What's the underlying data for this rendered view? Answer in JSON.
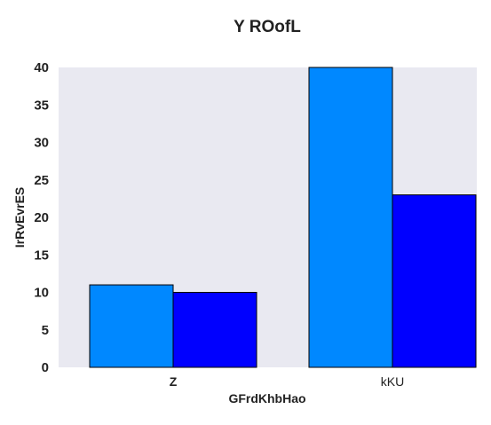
{
  "chart_data": {
    "type": "bar",
    "title": "Y ROofL",
    "xlabel": "GFrdKhbHao",
    "ylabel": "IrRvEvrES",
    "categories": [
      "Z",
      "kKU"
    ],
    "series": [
      {
        "values": [
          11,
          40
        ],
        "color": "#0088ff"
      },
      {
        "values": [
          10,
          23
        ],
        "color": "#0000ff"
      }
    ],
    "ylim": [
      0,
      40
    ],
    "yticks": [
      0,
      5,
      10,
      15,
      20,
      25,
      30,
      35,
      40
    ],
    "grid": false,
    "plot_background": "#e9e9f1",
    "bar_edge_color": "#000000"
  }
}
